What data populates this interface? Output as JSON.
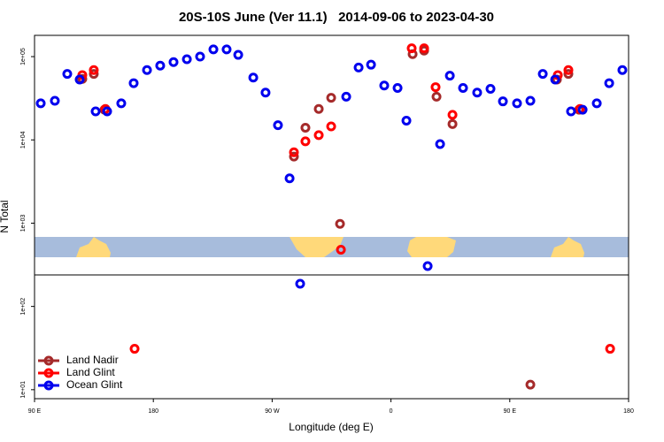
{
  "chart_data": {
    "type": "scatter",
    "title": "20S-10S June (Ver 11.1)   2014-09-06 to 2023-04-30",
    "x_label": "Longitude (deg E)",
    "y_label": "N Total",
    "log_y": true,
    "legend": "bottom-left",
    "xlim": [
      90,
      540
    ],
    "xticks": [
      {
        "value": 90,
        "label": "90 E"
      },
      {
        "value": 180,
        "label": "180"
      },
      {
        "value": 270,
        "label": "90 W"
      },
      {
        "value": 360,
        "label": "0"
      },
      {
        "value": 450,
        "label": "90 E"
      },
      {
        "value": 540,
        "label": "180"
      }
    ],
    "ylim": [
      7.8,
      180000
    ],
    "yticks": [
      {
        "value": 10,
        "label": "1e+01"
      },
      {
        "value": 100,
        "label": "1e+02"
      },
      {
        "value": 1000,
        "label": "1e+03"
      },
      {
        "value": 10000,
        "label": "1e+04"
      },
      {
        "value": 100000,
        "label": "1e+05"
      }
    ],
    "series": [
      {
        "name": "Land Nadir",
        "color": "#a52a2a",
        "x": [
          126.2,
          134.9,
          143,
          286.5,
          295.2,
          305.3,
          314.7,
          321.4,
          376.4,
          385.1,
          394.5,
          406.6,
          465.6,
          485.7,
          494.4,
          502.5
        ],
        "values": [
          54000,
          62000,
          23000,
          6300,
          14000,
          23500,
          32000,
          980,
          107000,
          118000,
          33000,
          15500,
          11.5,
          53000,
          62000,
          23000
        ]
      },
      {
        "name": "Land Glint",
        "color": "#ff0000",
        "x": [
          126.2,
          134.9,
          143.7,
          165.8,
          286.5,
          295.2,
          305.3,
          314.7,
          322.1,
          375.7,
          385.1,
          393.8,
          406.6,
          486.4,
          494.4,
          503.2,
          526
        ],
        "values": [
          60000,
          69000,
          23500,
          31,
          7100,
          9600,
          11400,
          14500,
          480,
          126000,
          126000,
          43000,
          20000,
          60000,
          69000,
          23500,
          31
        ]
      },
      {
        "name": "Ocean Glint",
        "color": "#0000ee",
        "x": [
          94.7,
          105.4,
          114.8,
          124.2,
          136.3,
          145,
          155.7,
          165.1,
          175.2,
          185.2,
          195.3,
          205.4,
          215.4,
          225.5,
          235.5,
          244.3,
          255.7,
          265,
          274.4,
          283.2,
          291.2,
          326.1,
          335.5,
          344.9,
          354.9,
          365,
          371.7,
          387.8,
          397.2,
          404.6,
          414.6,
          425.3,
          435.4,
          444.8,
          455.5,
          465.6,
          475,
          484.4,
          496.4,
          505.2,
          515.9,
          525.3,
          535.3
        ],
        "values": [
          27500,
          29500,
          62000,
          53000,
          22000,
          22000,
          27500,
          48000,
          69000,
          78000,
          86000,
          93000,
          100000,
          122000,
          122000,
          105000,
          56000,
          37000,
          15000,
          3450,
          187,
          33000,
          74000,
          80000,
          45000,
          42000,
          17000,
          305,
          8900,
          59000,
          42000,
          37000,
          41000,
          29000,
          27500,
          29500,
          62000,
          53000,
          22000,
          23000,
          27500,
          48000,
          69000
        ]
      }
    ]
  }
}
